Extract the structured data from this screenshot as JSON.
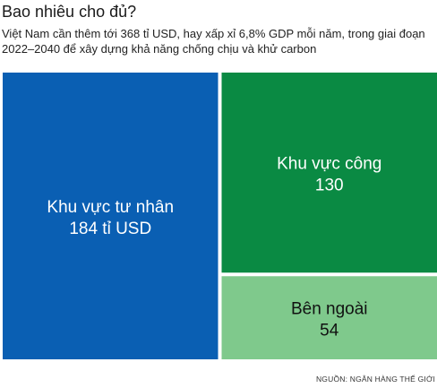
{
  "header": {
    "title": "Bao nhiêu cho đủ?",
    "subtitle": "Việt Nam cần thêm tới 368 tỉ USD, hay xấp xỉ 6,8% GDP mỗi năm, trong giai đoạn 2022–2040 để xây dựng khả năng chống chịu và khử carbon"
  },
  "footer": {
    "source": "NGUỒN: NGÂN HÀNG THẾ GIỚI"
  },
  "chart_data": {
    "type": "treemap",
    "total": 368,
    "unit": "tỉ USD",
    "items": [
      {
        "label": "Khu vực tư nhân",
        "value": 184,
        "value_text": "184 tỉ USD",
        "color": "#0a5fb3"
      },
      {
        "label": "Khu vực công",
        "value": 130,
        "value_text": "130",
        "color": "#0a8a43"
      },
      {
        "label": "Bên ngoài",
        "value": 54,
        "value_text": "54",
        "color": "#7fc98c"
      }
    ]
  }
}
